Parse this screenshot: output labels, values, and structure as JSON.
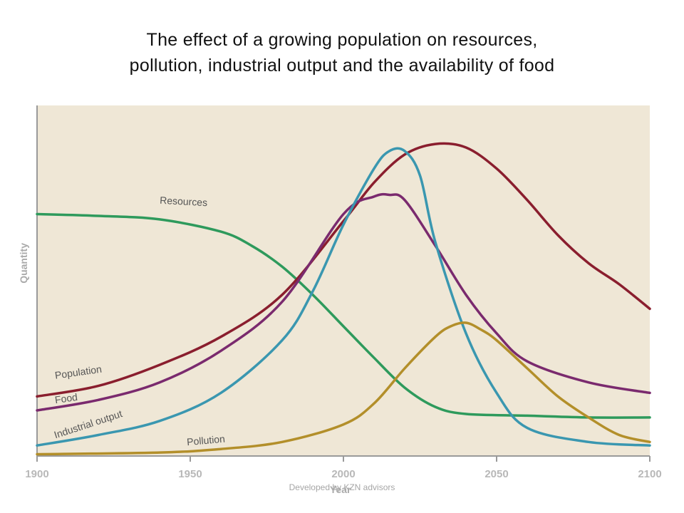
{
  "title": {
    "line1": "The effect of a growing population on resources,",
    "line2": "pollution, industrial output and the availability of food"
  },
  "credit": "Developed by KZN advisors",
  "chart_data": {
    "type": "line",
    "xlabel": "Year",
    "ylabel": "Quantity",
    "xlim": [
      1900,
      2100
    ],
    "ylim": [
      0,
      100
    ],
    "x_ticks": [
      "1900",
      "1950",
      "2000",
      "2050",
      "2100"
    ],
    "grid": false,
    "plot_background": "#efe7d6",
    "series": [
      {
        "name": "Resources",
        "color": "#2e9a5c",
        "label_angle": 3,
        "label_at": [
          1940,
          72
        ],
        "x": [
          1900,
          1920,
          1940,
          1960,
          1970,
          1980,
          1990,
          2000,
          2010,
          2020,
          2030,
          2040,
          2060,
          2080,
          2100
        ],
        "y": [
          69,
          68.5,
          67.5,
          64,
          60,
          54,
          46,
          37,
          28,
          19.5,
          14,
          12,
          11.5,
          11,
          11
        ]
      },
      {
        "name": "Population",
        "color": "#8a1e2e",
        "label_angle": -8,
        "label_at": [
          1906,
          22
        ],
        "x": [
          1900,
          1920,
          1940,
          1960,
          1980,
          2000,
          2010,
          2020,
          2030,
          2040,
          2050,
          2060,
          2070,
          2080,
          2090,
          2100
        ],
        "y": [
          17,
          20,
          26,
          34,
          46,
          67,
          78,
          86,
          89,
          88,
          82,
          73,
          63,
          55,
          49,
          42
        ]
      },
      {
        "name": "Food",
        "color": "#7a2a6e",
        "label_angle": -8,
        "label_at": [
          1906,
          15
        ],
        "x": [
          1900,
          1920,
          1940,
          1960,
          1980,
          2000,
          2010,
          2015,
          2020,
          2030,
          2040,
          2050,
          2060,
          2080,
          2100
        ],
        "y": [
          13,
          16,
          21,
          30,
          44,
          69,
          74,
          74.5,
          73,
          60,
          46,
          35,
          27,
          21,
          18
        ]
      },
      {
        "name": "Industrial output",
        "color": "#3a97b0",
        "label_angle": -18,
        "label_at": [
          1906,
          5
        ],
        "x": [
          1900,
          1920,
          1940,
          1960,
          1980,
          1990,
          2000,
          2010,
          2015,
          2020,
          2025,
          2030,
          2040,
          2050,
          2060,
          2080,
          2100
        ],
        "y": [
          3,
          6,
          10,
          18,
          33,
          47,
          66,
          82,
          87,
          87,
          80,
          61,
          35,
          18,
          8,
          4,
          3
        ]
      },
      {
        "name": "Pollution",
        "color": "#b38f2a",
        "label_angle": -5,
        "label_at": [
          1949,
          3
        ],
        "x": [
          1900,
          1940,
          1960,
          1980,
          2000,
          2010,
          2020,
          2030,
          2035,
          2040,
          2045,
          2050,
          2060,
          2070,
          2080,
          2090,
          2100
        ],
        "y": [
          0.5,
          1,
          2,
          4,
          9,
          15,
          25,
          34,
          37,
          38,
          36,
          33,
          25,
          17,
          11,
          6,
          4
        ]
      }
    ]
  }
}
